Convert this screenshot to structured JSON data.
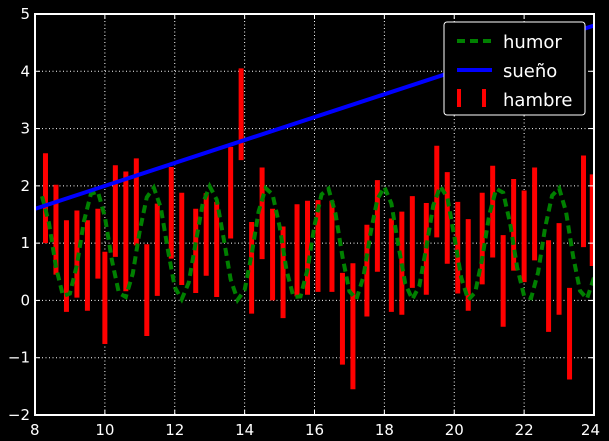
{
  "chart_data": {
    "type": "line",
    "title": "",
    "xlabel": "",
    "ylabel": "",
    "xlim": [
      8,
      24
    ],
    "ylim": [
      -2,
      5
    ],
    "x_ticks": [
      8,
      10,
      12,
      14,
      16,
      18,
      20,
      22,
      24
    ],
    "x_tick_labels": [
      "8",
      "10",
      "12",
      "14",
      "16",
      "18",
      "20",
      "22",
      "24"
    ],
    "y_ticks": [
      -2,
      -1,
      0,
      1,
      2,
      3,
      4,
      5
    ],
    "y_tick_labels": [
      "−2",
      "−1",
      "0",
      "1",
      "2",
      "3",
      "4",
      "5"
    ],
    "grid": true,
    "legend_position": "top-right",
    "series": [
      {
        "name": "humor",
        "kind": "line",
        "style": "dashed",
        "color": "#008000",
        "x": [
          8.2,
          8.4,
          8.6,
          8.8,
          9.0,
          9.2,
          9.4,
          9.6,
          9.8,
          10.0,
          10.2,
          10.4,
          10.6,
          10.8,
          11.0,
          11.2,
          11.4,
          11.6,
          11.8,
          12.0,
          12.2,
          12.4,
          12.6,
          12.8,
          13.0,
          13.2,
          13.4,
          13.6,
          13.8,
          14.0,
          14.2,
          14.4,
          14.6,
          14.8,
          15.0,
          15.2,
          15.4,
          15.6,
          15.8,
          16.0,
          16.2,
          16.4,
          16.6,
          16.8,
          17.0,
          17.2,
          17.4,
          17.6,
          17.8,
          18.0,
          18.2,
          18.4,
          18.6,
          18.8,
          19.0,
          19.2,
          19.4,
          19.6,
          19.8,
          20.0,
          20.2,
          20.4,
          20.6,
          20.8,
          21.0,
          21.2,
          21.4,
          21.6,
          21.8,
          22.0,
          22.2,
          22.4,
          22.6,
          22.8,
          23.0,
          23.2,
          23.4,
          23.6,
          23.8,
          24.0
        ],
        "y": [
          1.82,
          1.35,
          0.58,
          0.08,
          0.12,
          0.62,
          1.38,
          1.86,
          1.9,
          1.46,
          0.7,
          0.13,
          0.06,
          0.47,
          1.22,
          1.8,
          1.97,
          1.62,
          0.89,
          0.23,
          0.02,
          0.31,
          1.01,
          1.69,
          1.99,
          1.76,
          1.08,
          0.37,
          0.01,
          0.18,
          0.8,
          1.55,
          1.96,
          1.85,
          1.29,
          0.53,
          0.06,
          0.07,
          0.54,
          1.31,
          1.85,
          1.95,
          1.52,
          0.76,
          0.16,
          0.02,
          0.41,
          1.16,
          1.77,
          1.98,
          1.69,
          0.97,
          0.29,
          0.02,
          0.25,
          0.93,
          1.66,
          1.99,
          1.8,
          1.12,
          0.4,
          0.01,
          0.14,
          0.73,
          1.49,
          1.95,
          1.88,
          1.34,
          0.58,
          0.08,
          0.04,
          0.49,
          1.27,
          1.83,
          1.96,
          1.55,
          0.78,
          0.17,
          0.03,
          0.4
        ]
      },
      {
        "name": "sueño",
        "kind": "line",
        "style": "solid",
        "color": "#0000ff",
        "x": [
          8.0,
          24.0
        ],
        "y": [
          1.6,
          4.8
        ]
      },
      {
        "name": "hambre",
        "kind": "vertical-bars",
        "color": "#ff0000",
        "bars": [
          {
            "x": 8.3,
            "low": 1.0,
            "high": 2.57
          },
          {
            "x": 8.6,
            "low": 0.45,
            "high": 2.02
          },
          {
            "x": 8.9,
            "low": -0.2,
            "high": 1.4
          },
          {
            "x": 9.2,
            "low": 0.05,
            "high": 1.57
          },
          {
            "x": 9.5,
            "low": -0.18,
            "high": 1.4
          },
          {
            "x": 9.8,
            "low": 0.38,
            "high": 1.6
          },
          {
            "x": 10.0,
            "low": -0.76,
            "high": 0.85
          },
          {
            "x": 10.3,
            "low": 0.76,
            "high": 2.36
          },
          {
            "x": 10.6,
            "low": 0.16,
            "high": 2.25
          },
          {
            "x": 10.9,
            "low": 0.96,
            "high": 2.48
          },
          {
            "x": 11.2,
            "low": -0.62,
            "high": 0.98
          },
          {
            "x": 11.5,
            "low": 0.08,
            "high": 1.69
          },
          {
            "x": 11.9,
            "low": 0.73,
            "high": 2.33
          },
          {
            "x": 12.2,
            "low": 0.27,
            "high": 1.88
          },
          {
            "x": 12.6,
            "low": 0.13,
            "high": 1.6
          },
          {
            "x": 12.9,
            "low": 0.43,
            "high": 1.87
          },
          {
            "x": 13.2,
            "low": 0.06,
            "high": 1.72
          },
          {
            "x": 13.6,
            "low": 1.08,
            "high": 2.68
          },
          {
            "x": 13.9,
            "low": 2.45,
            "high": 4.05
          },
          {
            "x": 14.2,
            "low": -0.23,
            "high": 1.37
          },
          {
            "x": 14.5,
            "low": 0.72,
            "high": 2.32
          },
          {
            "x": 14.8,
            "low": 0.0,
            "high": 1.6
          },
          {
            "x": 15.1,
            "low": -0.31,
            "high": 1.29
          },
          {
            "x": 15.5,
            "low": 0.07,
            "high": 1.68
          },
          {
            "x": 15.8,
            "low": 0.1,
            "high": 1.74
          },
          {
            "x": 16.1,
            "low": 0.15,
            "high": 1.75
          },
          {
            "x": 16.5,
            "low": 0.15,
            "high": 1.74
          },
          {
            "x": 16.8,
            "low": -1.12,
            "high": 0.48
          },
          {
            "x": 17.1,
            "low": -1.55,
            "high": 0.65
          },
          {
            "x": 17.5,
            "low": -0.28,
            "high": 1.32
          },
          {
            "x": 17.8,
            "low": 0.5,
            "high": 2.1
          },
          {
            "x": 18.2,
            "low": -0.2,
            "high": 1.43
          },
          {
            "x": 18.5,
            "low": -0.25,
            "high": 1.55
          },
          {
            "x": 18.8,
            "low": 0.22,
            "high": 1.82
          },
          {
            "x": 19.2,
            "low": 0.1,
            "high": 1.7
          },
          {
            "x": 19.5,
            "low": 1.1,
            "high": 2.7
          },
          {
            "x": 19.8,
            "low": 0.64,
            "high": 2.24
          },
          {
            "x": 20.1,
            "low": 0.12,
            "high": 1.72
          },
          {
            "x": 20.4,
            "low": -0.18,
            "high": 1.42
          },
          {
            "x": 20.8,
            "low": 0.28,
            "high": 1.88
          },
          {
            "x": 21.1,
            "low": 0.75,
            "high": 2.35
          },
          {
            "x": 21.4,
            "low": -0.46,
            "high": 1.14
          },
          {
            "x": 21.7,
            "low": 0.52,
            "high": 2.12
          },
          {
            "x": 22.0,
            "low": 0.32,
            "high": 1.92
          },
          {
            "x": 22.3,
            "low": 0.7,
            "high": 2.32
          },
          {
            "x": 22.7,
            "low": -0.55,
            "high": 1.05
          },
          {
            "x": 23.0,
            "low": -0.25,
            "high": 1.35
          },
          {
            "x": 23.3,
            "low": -1.38,
            "high": 0.22
          },
          {
            "x": 23.7,
            "low": 0.93,
            "high": 2.53
          },
          {
            "x": 23.95,
            "low": 0.6,
            "high": 2.2
          }
        ]
      }
    ]
  }
}
